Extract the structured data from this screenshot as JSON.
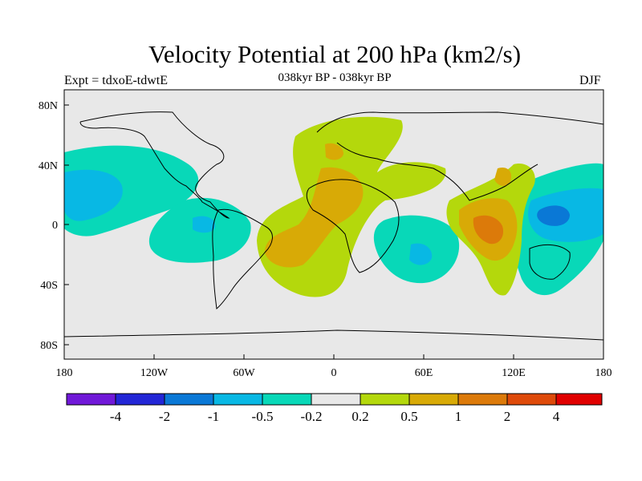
{
  "header": {
    "title": "Velocity Potential at 200 hPa (km2/s)",
    "subtitle": "038kyr BP - 038kyr BP",
    "experiment": "Expt = tdxoE-tdwtE",
    "season": "DJF"
  },
  "map": {
    "y_ticks": [
      "80N",
      "40N",
      "0",
      "40S",
      "80S"
    ],
    "x_ticks": [
      "180",
      "120W",
      "60W",
      "0",
      "60E",
      "120E",
      "180"
    ]
  },
  "colorbar": {
    "colors": [
      "#7018d8",
      "#2226d6",
      "#0a78d6",
      "#08b8e4",
      "#08d8b8",
      "#e8e8e8",
      "#b4d80c",
      "#d8aa06",
      "#dc7a0a",
      "#de4a0a",
      "#e00000"
    ],
    "labels": [
      "-4",
      "-2",
      "-1",
      "-0.5",
      "-0.2",
      "0.2",
      "0.5",
      "1",
      "2",
      "4"
    ]
  },
  "colors": {
    "neutral": "#e8e8e8",
    "coastline": "#000000"
  }
}
